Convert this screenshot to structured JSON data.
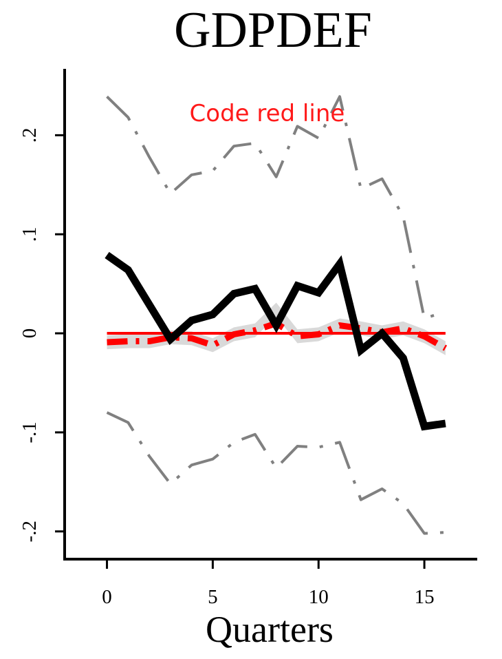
{
  "chart_data": {
    "type": "line",
    "title": "GDPDEF",
    "xlabel": "Quarters",
    "ylabel": "",
    "xlim": [
      -2,
      17.5
    ],
    "ylim": [
      -0.228,
      0.267
    ],
    "x_ticks": [
      0,
      5,
      10,
      15
    ],
    "x_tick_labels": [
      "0",
      "5",
      "10",
      "15"
    ],
    "y_ticks": [
      -0.2,
      -0.1,
      0,
      0.1,
      0.2
    ],
    "y_tick_labels": [
      "-.2",
      "-.1",
      "0",
      ".1",
      ".2"
    ],
    "grid": false,
    "x": [
      0,
      1,
      2,
      3,
      4,
      5,
      6,
      7,
      8,
      9,
      10,
      11,
      12,
      13,
      14,
      15,
      16
    ],
    "series": [
      {
        "key": "upper",
        "style": "dash-dot",
        "color": "#808080",
        "values": [
          0.239,
          0.218,
          0.178,
          0.141,
          0.16,
          0.164,
          0.189,
          0.192,
          0.158,
          0.209,
          0.197,
          0.239,
          0.146,
          0.156,
          0.118,
          0.015,
          0.022
        ]
      },
      {
        "key": "lower",
        "style": "dash-dot",
        "color": "#808080",
        "values": [
          -0.08,
          -0.09,
          -0.124,
          -0.152,
          -0.133,
          -0.127,
          -0.11,
          -0.102,
          -0.136,
          -0.114,
          -0.115,
          -0.11,
          -0.168,
          -0.157,
          -0.172,
          -0.202,
          -0.201
        ]
      },
      {
        "key": "placebo_band_upper",
        "style": "band",
        "color": "#d9d9d9",
        "values": [
          -0.002,
          -0.001,
          -0.001,
          0.003,
          0.002,
          -0.005,
          0.006,
          0.01,
          0.031,
          0.004,
          0.006,
          0.015,
          0.012,
          0.008,
          0.012,
          0.004,
          -0.008
        ]
      },
      {
        "key": "placebo_band_lower",
        "style": "band",
        "color": "#d9d9d9",
        "values": [
          -0.016,
          -0.015,
          -0.015,
          -0.011,
          -0.012,
          -0.019,
          -0.008,
          -0.004,
          0.017,
          -0.01,
          -0.008,
          0.001,
          -0.002,
          -0.006,
          -0.002,
          -0.01,
          -0.022
        ]
      },
      {
        "key": "placebo",
        "style": "dashed",
        "color": "#ff0000",
        "values": [
          -0.009,
          -0.008,
          -0.008,
          -0.004,
          -0.005,
          -0.012,
          -0.001,
          0.003,
          0.01,
          -0.003,
          -0.001,
          0.008,
          0.005,
          0.001,
          0.005,
          -0.003,
          -0.015
        ]
      },
      {
        "key": "estimate",
        "style": "solid",
        "color": "#000000",
        "values": [
          0.079,
          0.064,
          0.029,
          -0.006,
          0.013,
          0.019,
          0.04,
          0.045,
          0.008,
          0.048,
          0.041,
          0.07,
          -0.017,
          0.0,
          -0.025,
          -0.094,
          -0.091
        ]
      },
      {
        "key": "zero_line",
        "style": "solid",
        "color": "#ff0000",
        "values": [
          0,
          0,
          0,
          0,
          0,
          0,
          0,
          0,
          0,
          0,
          0,
          0,
          0,
          0,
          0,
          0,
          0
        ]
      }
    ],
    "annotations": [
      {
        "text": "Code red line",
        "color": "#ff1a1a",
        "x": 3.9,
        "y": 0.214
      }
    ]
  }
}
